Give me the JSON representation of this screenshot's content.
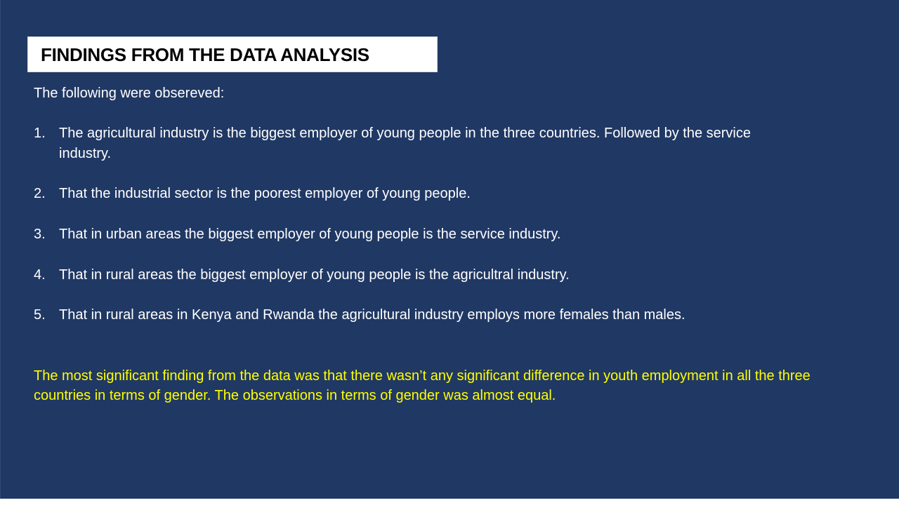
{
  "title": "FINDINGS FROM THE DATA ANALYSIS",
  "intro": "The following were obsereved:",
  "findings": [
    {
      "num": "1.",
      "text": "The agricultural industry is the biggest employer of young people in the three countries. Followed by the service industry."
    },
    {
      "num": "2.",
      "text": "That the industrial sector is the poorest employer of young people."
    },
    {
      "num": "3.",
      "text": "That in urban areas the biggest employer of young people is the service industry."
    },
    {
      "num": "4.",
      "text": "That in rural areas the biggest employer of young people is the agricultral industry."
    },
    {
      "num": "5.",
      "text": "That in rural areas in Kenya and Rwanda the agricultural industry employs more females than males."
    }
  ],
  "conclusion": "The most significant finding from the data was that there wasn’t any significant difference in youth employment in all the three countries in terms of gender. The observations in terms of gender was almost equal.",
  "colors": {
    "background": "#203864",
    "title_box": "#ffffff",
    "body_text": "#ffffff",
    "highlight_text": "#ffff00"
  }
}
